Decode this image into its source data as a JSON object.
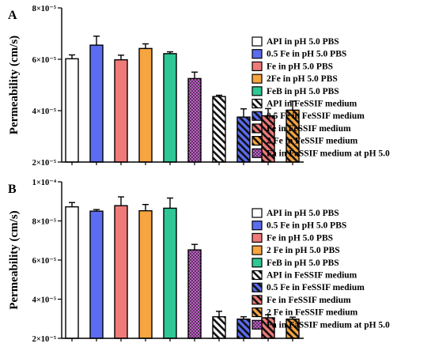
{
  "chart_data": [
    {
      "type": "bar",
      "panel_label": "A",
      "ylabel": "Permeability (cm/s)",
      "ylim": [
        2e-05,
        8e-05
      ],
      "yticks": [
        {
          "value": 2e-05,
          "label": "2×10⁻⁵"
        },
        {
          "value": 4e-05,
          "label": "4×10⁻⁵"
        },
        {
          "value": 6e-05,
          "label": "6×10⁻⁵"
        },
        {
          "value": 8e-05,
          "label": "8×10⁻⁵"
        }
      ],
      "legend_position": "right",
      "series": [
        {
          "name": "API in pH 5.0 PBS",
          "value": 6.02e-05,
          "error": 1.5e-06,
          "color": "#ffffff",
          "pattern": "none"
        },
        {
          "name": "0.5 Fe in pH 5.0 PBS",
          "value": 6.55e-05,
          "error": 3.5e-06,
          "color": "#5b6cf0",
          "pattern": "none"
        },
        {
          "name": "Fe in pH 5.0 PBS",
          "value": 5.98e-05,
          "error": 1.8e-06,
          "color": "#f07a78",
          "pattern": "none"
        },
        {
          "name": "2Fe in pH 5.0 PBS",
          "value": 6.42e-05,
          "error": 1.8e-06,
          "color": "#f7a540",
          "pattern": "none"
        },
        {
          "name": "FeB in pH 5.0 PBS",
          "value": 6.22e-05,
          "error": 7e-07,
          "color": "#2ec795",
          "pattern": "none"
        },
        {
          "name": "Fa in FaSSIF medium at pH 5.0",
          "value": 5.25e-05,
          "error": 2.5e-06,
          "color": "#c060c8",
          "pattern": "dots"
        },
        {
          "name": "API in FeSSIF medium",
          "value": 4.55e-05,
          "error": 5e-07,
          "color": "#ffffff",
          "pattern": "diag"
        },
        {
          "name": "0.5 Fe in FeSSIF medium",
          "value": 3.75e-05,
          "error": 3.2e-06,
          "color": "#5b6cf0",
          "pattern": "diag"
        },
        {
          "name": "Fe in FeSSIF medium",
          "value": 3.8e-05,
          "error": 2.8e-06,
          "color": "#f07a78",
          "pattern": "diag"
        },
        {
          "name": "2 Fe in FeSSIF medium",
          "value": 4.02e-05,
          "error": 3.5e-06,
          "color": "#f7a540",
          "pattern": "diag"
        }
      ],
      "legend_order": [
        "API in pH 5.0 PBS",
        "0.5 Fe in pH 5.0 PBS",
        "Fe in pH 5.0 PBS",
        "2Fe in pH 5.0 PBS",
        "FeB in pH 5.0 PBS",
        "API in FeSSIF medium",
        "0.5 Fe in FeSSIF medium",
        "Fe in FeSSIF medium",
        "2 Fe in FeSSIF medium",
        "Fa in FaSSIF medium at pH 5.0"
      ]
    },
    {
      "type": "bar",
      "panel_label": "B",
      "ylabel": "Permeability (cm/s)",
      "ylim": [
        2e-05,
        0.0001
      ],
      "yticks": [
        {
          "value": 2e-05,
          "label": "2×10⁻⁵"
        },
        {
          "value": 4e-05,
          "label": "4×10⁻⁵"
        },
        {
          "value": 6e-05,
          "label": "6×10⁻⁵"
        },
        {
          "value": 8e-05,
          "label": "8×10⁻⁵"
        },
        {
          "value": 0.0001,
          "label": "1×10⁻⁴"
        }
      ],
      "legend_position": "right",
      "series": [
        {
          "name": "API in pH 5.0 PBS",
          "value": 8.72e-05,
          "error": 2.2e-06,
          "color": "#ffffff",
          "pattern": "none"
        },
        {
          "name": "0.5 Fe in pH 5.0 PBS",
          "value": 8.5e-05,
          "error": 8e-07,
          "color": "#5b6cf0",
          "pattern": "none"
        },
        {
          "name": "Fe in pH 5.0 PBS",
          "value": 8.78e-05,
          "error": 4.5e-06,
          "color": "#f07a78",
          "pattern": "none"
        },
        {
          "name": "2 Fe in pH 5.0 PBS",
          "value": 8.52e-05,
          "error": 3.2e-06,
          "color": "#f7a540",
          "pattern": "none"
        },
        {
          "name": "FeB in pH 5.0 PBS",
          "value": 8.65e-05,
          "error": 5.2e-06,
          "color": "#2ec795",
          "pattern": "none"
        },
        {
          "name": "Fa in FaSSIF medium at pH 5.0",
          "value": 6.52e-05,
          "error": 2.8e-06,
          "color": "#c060c8",
          "pattern": "dots"
        },
        {
          "name": "API in FeSSIF medium",
          "value": 3.1e-05,
          "error": 2.8e-06,
          "color": "#ffffff",
          "pattern": "diag"
        },
        {
          "name": "0.5 Fe in FeSSIF medium",
          "value": 2.98e-05,
          "error": 1.2e-06,
          "color": "#5b6cf0",
          "pattern": "diag"
        },
        {
          "name": "Fe in FeSSIF medium",
          "value": 3.05e-05,
          "error": 1.5e-06,
          "color": "#f07a78",
          "pattern": "diag"
        },
        {
          "name": "2 Fe in FeSSIF medium",
          "value": 2.98e-05,
          "error": 1e-06,
          "color": "#f7a540",
          "pattern": "diag"
        }
      ],
      "legend_order": [
        "API in pH 5.0 PBS",
        "0.5 Fe in pH 5.0 PBS",
        "Fe in pH 5.0 PBS",
        "2 Fe in pH 5.0 PBS",
        "FeB in pH 5.0 PBS",
        "API in FeSSIF medium",
        "0.5 Fe in FeSSIF medium",
        "Fe in FeSSIF medium",
        "2 Fe in FeSSIF medium",
        "Fa in FaSSIF medium at pH 5.0"
      ]
    }
  ]
}
